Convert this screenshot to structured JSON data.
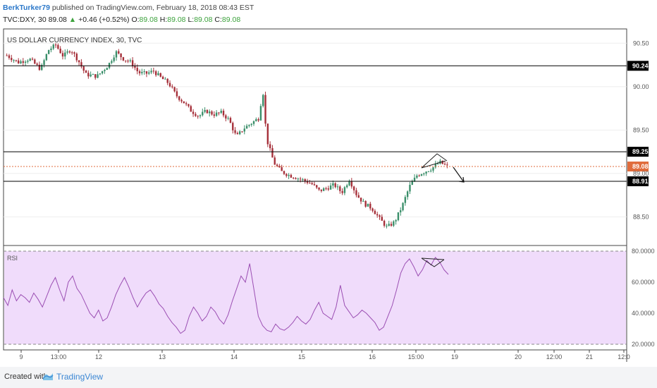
{
  "header": {
    "author": "BerkTurker79",
    "published_text": "published on TradingView.com, February 18, 2018 08:43 EST",
    "symbol_line": "TVC:DXY, 30",
    "last": "89.08",
    "change_arrow": "▲",
    "change": "+0.46 (+0.52%)",
    "o_label": "O:",
    "o_value": "89.08",
    "h_label": "H:",
    "h_value": "89.08",
    "l_label": "L:",
    "l_value": "89.08",
    "c_label": "C:",
    "c_value": "89.08"
  },
  "footer": {
    "created_with": "Created with",
    "brand": "TradingView"
  },
  "colors": {
    "up_candle": "#3a8f6a",
    "down_candle": "#a6303a",
    "rsi_line": "#9b4fb3",
    "rsi_band": "#f0dcfb",
    "current_price": "#e06c3c",
    "level_line": "#000000"
  },
  "chart_data": [
    {
      "type": "candlestick",
      "title": "US DOLLAR CURRENCY INDEX, 30, TVC",
      "ylim": [
        88.3,
        90.6
      ],
      "y_ticks": [
        "90.50",
        "90.00",
        "89.50",
        "89.00",
        "88.50"
      ],
      "x_tick_labels": [
        "9",
        "13:00",
        "12",
        "13",
        "14",
        "15",
        "16",
        "15:00",
        "19",
        "20",
        "12:00",
        "21",
        "12:0"
      ],
      "horizontal_levels": [
        {
          "label": "90.24",
          "value": 90.24
        },
        {
          "label": "89.25",
          "value": 89.25
        },
        {
          "label": "88.91",
          "value": 88.91
        }
      ],
      "current_price": {
        "label": "89.08",
        "value": 89.08
      },
      "close_path": [
        [
          0,
          90.36
        ],
        [
          3,
          90.28
        ],
        [
          6,
          90.32
        ],
        [
          9,
          90.2
        ],
        [
          11,
          90.42
        ],
        [
          13,
          90.48
        ],
        [
          15,
          90.35
        ],
        [
          17,
          90.43
        ],
        [
          19,
          90.3
        ],
        [
          21,
          90.14
        ],
        [
          24,
          90.12
        ],
        [
          27,
          90.25
        ],
        [
          29,
          90.4
        ],
        [
          31,
          90.32
        ],
        [
          33,
          90.28
        ],
        [
          35,
          90.16
        ],
        [
          37,
          90.15
        ],
        [
          39,
          90.18
        ],
        [
          41,
          90.1
        ],
        [
          43,
          90.04
        ],
        [
          45,
          89.9
        ],
        [
          47,
          89.82
        ],
        [
          49,
          89.72
        ],
        [
          51,
          89.66
        ],
        [
          53,
          89.72
        ],
        [
          55,
          89.68
        ],
        [
          57,
          89.7
        ],
        [
          59,
          89.62
        ],
        [
          61,
          89.42
        ],
        [
          63,
          89.52
        ],
        [
          65,
          89.58
        ],
        [
          67,
          89.64
        ],
        [
          68,
          89.98
        ],
        [
          69,
          89.4
        ],
        [
          71,
          89.12
        ],
        [
          73,
          89.02
        ],
        [
          75,
          88.98
        ],
        [
          77,
          88.95
        ],
        [
          79,
          88.92
        ],
        [
          81,
          88.88
        ],
        [
          83,
          88.8
        ],
        [
          85,
          88.83
        ],
        [
          87,
          88.87
        ],
        [
          89,
          88.78
        ],
        [
          91,
          88.93
        ],
        [
          93,
          88.75
        ],
        [
          95,
          88.65
        ],
        [
          97,
          88.6
        ],
        [
          99,
          88.48
        ],
        [
          101,
          88.38
        ],
        [
          103,
          88.44
        ],
        [
          105,
          88.62
        ],
        [
          107,
          88.85
        ],
        [
          109,
          88.98
        ],
        [
          111,
          89.02
        ],
        [
          113,
          89.06
        ],
        [
          115,
          89.13
        ],
        [
          117,
          89.08
        ]
      ],
      "close_path_x_range": [
        0,
        117
      ]
    },
    {
      "type": "line",
      "title": "RSI",
      "ylim": [
        20,
        80
      ],
      "y_ticks": [
        "80.0000",
        "60.0000",
        "40.0000",
        "20.0000"
      ],
      "bands": [
        30,
        70
      ],
      "values": [
        50,
        45,
        55,
        48,
        52,
        50,
        47,
        53,
        49,
        44,
        51,
        58,
        63,
        55,
        48,
        60,
        64,
        56,
        52,
        46,
        40,
        37,
        42,
        35,
        37,
        44,
        52,
        58,
        63,
        57,
        50,
        44,
        49,
        53,
        55,
        51,
        46,
        43,
        38,
        34,
        31,
        27,
        29,
        38,
        44,
        40,
        35,
        38,
        44,
        41,
        36,
        33,
        39,
        48,
        56,
        64,
        60,
        72,
        55,
        38,
        32,
        29,
        28,
        33,
        30,
        29,
        31,
        34,
        38,
        35,
        33,
        36,
        42,
        47,
        40,
        38,
        36,
        44,
        58,
        45,
        41,
        37,
        39,
        42,
        40,
        37,
        34,
        29,
        31,
        38,
        45,
        55,
        66,
        72,
        75,
        70,
        64,
        68,
        74,
        71,
        76,
        73,
        68,
        65
      ]
    }
  ]
}
